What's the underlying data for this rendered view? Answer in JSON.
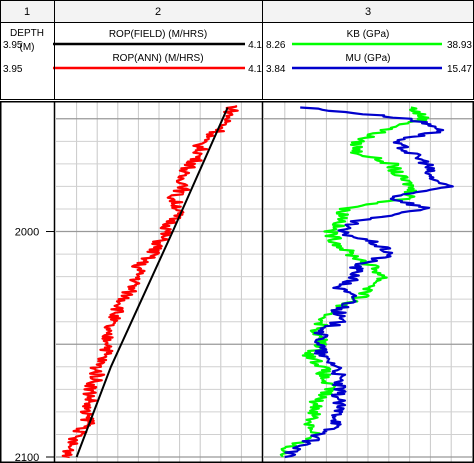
{
  "tracks": [
    {
      "number": "1",
      "title": "DEPTH",
      "unit": "(M)"
    },
    {
      "number": "2"
    },
    {
      "number": "3"
    }
  ],
  "chart_data": {
    "type": "line",
    "depth_axis": {
      "range": [
        1943,
        2100
      ],
      "ticks": [
        2000,
        2100
      ],
      "tick_labels": [
        "2000",
        "2100"
      ]
    },
    "curves": [
      {
        "track": 2,
        "name": "ROP(FIELD) (M/HRS)",
        "min_label": "3.95",
        "max_label": "4.1",
        "min": 3.95,
        "max": 4.1,
        "color": "#000000",
        "points": [
          [
            1945,
            4.075
          ],
          [
            2000,
            4.035
          ],
          [
            2060,
            3.99
          ],
          [
            2100,
            3.965
          ]
        ]
      },
      {
        "track": 2,
        "name": "ROP(ANN) (M/HRS)",
        "min_label": "3.95",
        "max_label": "4.1",
        "min": 3.95,
        "max": 4.1,
        "color": "#ff0000",
        "points": [
          [
            1944,
            4.08
          ],
          [
            1950,
            4.075
          ],
          [
            1955,
            4.07
          ],
          [
            1960,
            4.055
          ],
          [
            1965,
            4.055
          ],
          [
            1970,
            4.05
          ],
          [
            1975,
            4.04
          ],
          [
            1980,
            4.045
          ],
          [
            1985,
            4.035
          ],
          [
            1990,
            4.04
          ],
          [
            1995,
            4.035
          ],
          [
            2000,
            4.03
          ],
          [
            2005,
            4.025
          ],
          [
            2010,
            4.02
          ],
          [
            2015,
            4.01
          ],
          [
            2020,
            4.01
          ],
          [
            2025,
            4.005
          ],
          [
            2030,
            4.0
          ],
          [
            2035,
            3.995
          ],
          [
            2040,
            3.99
          ],
          [
            2045,
            3.985
          ],
          [
            2050,
            3.99
          ],
          [
            2055,
            3.985
          ],
          [
            2060,
            3.98
          ],
          [
            2065,
            3.98
          ],
          [
            2070,
            3.975
          ],
          [
            2075,
            3.975
          ],
          [
            2080,
            3.97
          ],
          [
            2085,
            3.975
          ],
          [
            2090,
            3.965
          ],
          [
            2095,
            3.96
          ],
          [
            2100,
            3.96
          ]
        ]
      },
      {
        "track": 3,
        "name": "KB (GPa)",
        "min_label": "8.26",
        "max_label": "38.93",
        "min": 8.26,
        "max": 38.93,
        "color": "#00ff00",
        "points": [
          [
            1945,
            30
          ],
          [
            1950,
            32
          ],
          [
            1955,
            26
          ],
          [
            1960,
            22
          ],
          [
            1965,
            22
          ],
          [
            1970,
            27
          ],
          [
            1975,
            28
          ],
          [
            1980,
            30
          ],
          [
            1985,
            30
          ],
          [
            1990,
            20
          ],
          [
            1995,
            20
          ],
          [
            2000,
            18
          ],
          [
            2005,
            19
          ],
          [
            2010,
            21
          ],
          [
            2015,
            24
          ],
          [
            2020,
            26
          ],
          [
            2025,
            24
          ],
          [
            2030,
            22
          ],
          [
            2035,
            18
          ],
          [
            2040,
            17
          ],
          [
            2045,
            16
          ],
          [
            2050,
            17
          ],
          [
            2055,
            15
          ],
          [
            2060,
            17
          ],
          [
            2065,
            17
          ],
          [
            2070,
            18
          ],
          [
            2075,
            16
          ],
          [
            2080,
            16
          ],
          [
            2085,
            15
          ],
          [
            2090,
            16
          ],
          [
            2095,
            12
          ],
          [
            2100,
            11
          ]
        ]
      },
      {
        "track": 3,
        "name": "MU (GPa)",
        "min_label": "3.84",
        "max_label": "15.47",
        "min": 3.84,
        "max": 15.47,
        "color": "#0000cc",
        "points": [
          [
            1945,
            6
          ],
          [
            1950,
            12
          ],
          [
            1955,
            14
          ],
          [
            1960,
            11
          ],
          [
            1965,
            12
          ],
          [
            1970,
            13
          ],
          [
            1975,
            13
          ],
          [
            1980,
            14
          ],
          [
            1985,
            11
          ],
          [
            1990,
            13
          ],
          [
            1995,
            9
          ],
          [
            2000,
            8
          ],
          [
            2005,
            10
          ],
          [
            2010,
            11
          ],
          [
            2015,
            9
          ],
          [
            2020,
            9
          ],
          [
            2025,
            8
          ],
          [
            2030,
            9
          ],
          [
            2035,
            8
          ],
          [
            2040,
            8
          ],
          [
            2045,
            7
          ],
          [
            2050,
            7
          ],
          [
            2055,
            7
          ],
          [
            2060,
            8
          ],
          [
            2065,
            8
          ],
          [
            2070,
            8
          ],
          [
            2075,
            8
          ],
          [
            2080,
            8
          ],
          [
            2085,
            8
          ],
          [
            2090,
            7
          ],
          [
            2095,
            6
          ],
          [
            2100,
            5
          ]
        ]
      }
    ]
  }
}
